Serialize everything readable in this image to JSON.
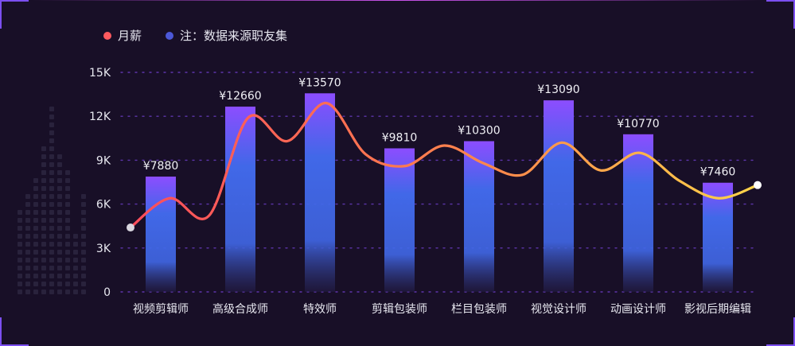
{
  "chart_data": {
    "type": "bar",
    "categories": [
      "视频剪辑师",
      "高级合成师",
      "特效师",
      "剪辑包装师",
      "栏目包装师",
      "视觉设计师",
      "动画设计师",
      "影视后期编辑"
    ],
    "values": [
      7880,
      12660,
      13570,
      9810,
      10300,
      13090,
      10770,
      7460
    ],
    "value_labels": [
      "¥7880",
      "¥12660",
      "¥13570",
      "¥9810",
      "¥10300",
      "¥13090",
      "¥10770",
      "¥7460"
    ],
    "line_series": {
      "name": "月薪",
      "values": [
        4400,
        6400,
        5200,
        11900,
        10300,
        12900,
        9400,
        8600,
        10000,
        8800,
        8000,
        10200,
        8300,
        9500,
        7600,
        6400,
        7300
      ]
    },
    "legend": [
      {
        "label": "月薪",
        "color": "#ff5a5f"
      },
      {
        "label": "注：数据来源职友集",
        "color": "#4c58d8"
      }
    ],
    "yticks": [
      "0",
      "3K",
      "6K",
      "9K",
      "12K",
      "15K"
    ],
    "ylim": [
      0,
      15000
    ],
    "grid": true,
    "legend_position": "top-left"
  },
  "colors": {
    "background": "#180f27",
    "grid": "#5d35ab",
    "bar_top": "#8c4dff",
    "bar_middle": "#4168e8",
    "bar_bottom": "#241d48",
    "line_start": "#ff4b5c",
    "line_end": "#ffd54a",
    "marker": "#ffffff"
  }
}
